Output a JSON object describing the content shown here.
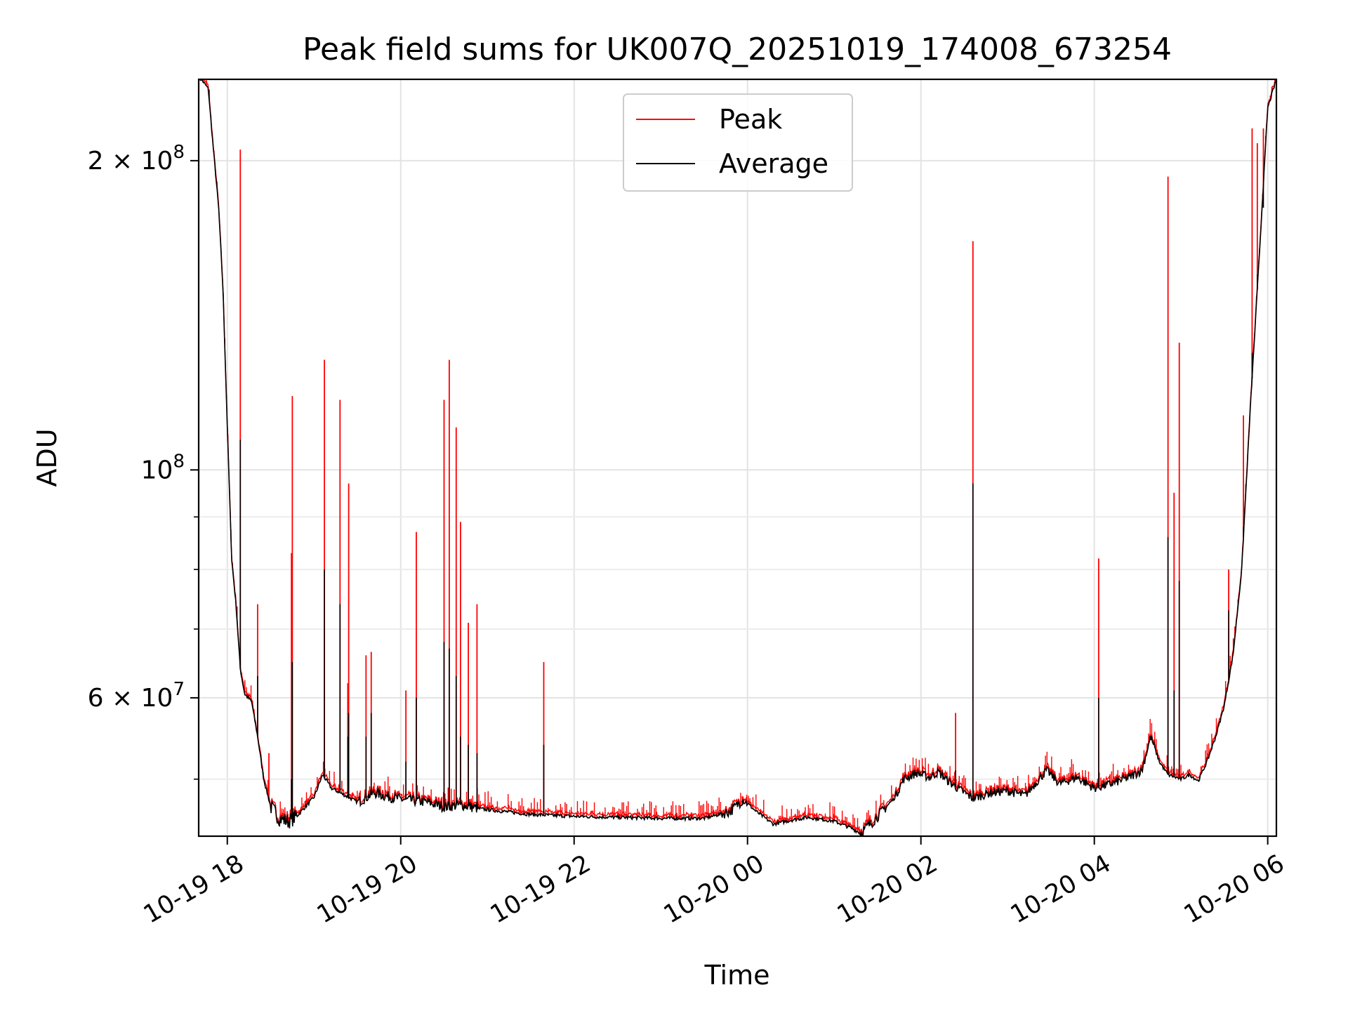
{
  "chart_data": {
    "type": "line",
    "title": "Peak field sums for UK007Q_20251019_174008_673254",
    "xlabel": "Time",
    "ylabel": "ADU",
    "yscale": "log",
    "ylim": [
      44000000,
      240000000
    ],
    "xlim_hours": [
      17.67,
      30.1
    ],
    "grid": true,
    "legend_position": "upper-center",
    "x_ticks": [
      {
        "hours": 18,
        "label": "10-19 18"
      },
      {
        "hours": 20,
        "label": "10-19 20"
      },
      {
        "hours": 22,
        "label": "10-19 22"
      },
      {
        "hours": 24,
        "label": "10-20 00"
      },
      {
        "hours": 26,
        "label": "10-20 02"
      },
      {
        "hours": 28,
        "label": "10-20 04"
      },
      {
        "hours": 30,
        "label": "10-20 06"
      }
    ],
    "y_ticks": [
      {
        "value": 200000000,
        "mant": "2",
        "exp": "8"
      },
      {
        "value": 100000000,
        "mant": "",
        "exp": "8"
      },
      {
        "value": 60000000,
        "mant": "6",
        "exp": "7"
      }
    ],
    "y_minor_ticks": [
      50000000,
      70000000,
      80000000,
      90000000
    ],
    "series": [
      {
        "name": "Peak",
        "color": "#ff0000"
      },
      {
        "name": "Average",
        "color": "#000000"
      }
    ],
    "average_curve": [
      [
        17.7,
        240000000
      ],
      [
        17.78,
        235000000
      ],
      [
        17.84,
        205000000
      ],
      [
        17.9,
        180000000
      ],
      [
        17.95,
        150000000
      ],
      [
        18.0,
        110000000
      ],
      [
        18.05,
        82000000
      ],
      [
        18.1,
        74000000
      ],
      [
        18.15,
        64000000
      ],
      [
        18.2,
        60500000
      ],
      [
        18.28,
        59500000
      ],
      [
        18.35,
        55000000
      ],
      [
        18.42,
        50000000
      ],
      [
        18.5,
        47000000
      ],
      [
        18.6,
        45800000
      ],
      [
        18.7,
        45500000
      ],
      [
        18.8,
        46000000
      ],
      [
        18.9,
        47000000
      ],
      [
        19.0,
        48000000
      ],
      [
        19.1,
        50500000
      ],
      [
        19.2,
        49000000
      ],
      [
        19.3,
        48500000
      ],
      [
        19.4,
        48000000
      ],
      [
        19.5,
        47500000
      ],
      [
        19.6,
        48000000
      ],
      [
        19.7,
        48500000
      ],
      [
        19.8,
        48200000
      ],
      [
        20.0,
        47800000
      ],
      [
        20.3,
        47500000
      ],
      [
        20.5,
        47000000
      ],
      [
        20.7,
        47200000
      ],
      [
        20.9,
        46800000
      ],
      [
        21.2,
        46500000
      ],
      [
        21.5,
        46200000
      ],
      [
        22.0,
        46000000
      ],
      [
        22.5,
        45900000
      ],
      [
        23.0,
        45800000
      ],
      [
        23.5,
        45800000
      ],
      [
        23.8,
        46500000
      ],
      [
        23.95,
        47800000
      ],
      [
        24.1,
        46500000
      ],
      [
        24.3,
        45200000
      ],
      [
        24.5,
        45600000
      ],
      [
        24.7,
        45900000
      ],
      [
        25.0,
        45500000
      ],
      [
        25.2,
        44800000
      ],
      [
        25.3,
        44300000
      ],
      [
        25.45,
        45500000
      ],
      [
        25.6,
        47000000
      ],
      [
        25.7,
        48000000
      ],
      [
        25.8,
        50000000
      ],
      [
        25.95,
        50700000
      ],
      [
        26.1,
        50200000
      ],
      [
        26.2,
        50800000
      ],
      [
        26.35,
        49500000
      ],
      [
        26.5,
        48500000
      ],
      [
        26.6,
        47900000
      ],
      [
        26.8,
        48500000
      ],
      [
        27.0,
        48700000
      ],
      [
        27.2,
        48200000
      ],
      [
        27.45,
        51000000
      ],
      [
        27.6,
        49500000
      ],
      [
        27.8,
        50200000
      ],
      [
        28.0,
        49000000
      ],
      [
        28.2,
        49500000
      ],
      [
        28.4,
        50200000
      ],
      [
        28.55,
        51000000
      ],
      [
        28.65,
        55000000
      ],
      [
        28.75,
        52000000
      ],
      [
        28.85,
        50500000
      ],
      [
        29.0,
        50000000
      ],
      [
        29.1,
        50500000
      ],
      [
        29.2,
        49800000
      ],
      [
        29.3,
        52000000
      ],
      [
        29.4,
        55000000
      ],
      [
        29.5,
        59000000
      ],
      [
        29.6,
        66000000
      ],
      [
        29.7,
        80000000
      ],
      [
        29.8,
        115000000
      ],
      [
        29.9,
        160000000
      ],
      [
        30.0,
        225000000
      ],
      [
        30.1,
        240000000
      ]
    ],
    "noise_bands": [
      {
        "from": 18.5,
        "to": 18.8,
        "amp": 0.018
      },
      {
        "from": 19.5,
        "to": 20.9,
        "amp": 0.012
      },
      {
        "from": 23.7,
        "to": 24.0,
        "amp": 0.012
      },
      {
        "from": 25.3,
        "to": 25.6,
        "amp": 0.012
      },
      {
        "from": 25.7,
        "to": 28.7,
        "amp": 0.01
      }
    ],
    "peak_spikes": [
      {
        "t": 18.15,
        "peak": 205000000,
        "avg": 107000000
      },
      {
        "t": 18.35,
        "peak": 74000000,
        "avg": 63000000
      },
      {
        "t": 18.48,
        "peak": 53000000,
        "avg": 48000000
      },
      {
        "t": 18.75,
        "peak": 118000000,
        "avg": 65000000
      },
      {
        "t": 18.74,
        "peak": 83000000,
        "avg": 50000000
      },
      {
        "t": 19.12,
        "peak": 128000000,
        "avg": 80000000
      },
      {
        "t": 19.3,
        "peak": 117000000,
        "avg": 74000000
      },
      {
        "t": 19.4,
        "peak": 97000000,
        "avg": 58000000
      },
      {
        "t": 19.39,
        "peak": 62000000,
        "avg": 55000000
      },
      {
        "t": 19.6,
        "peak": 66000000,
        "avg": 55000000
      },
      {
        "t": 19.66,
        "peak": 66500000,
        "avg": 58000000
      },
      {
        "t": 20.06,
        "peak": 61000000,
        "avg": 52000000
      },
      {
        "t": 20.18,
        "peak": 87000000,
        "avg": 60000000
      },
      {
        "t": 20.5,
        "peak": 117000000,
        "avg": 68000000
      },
      {
        "t": 20.56,
        "peak": 128000000,
        "avg": 67000000
      },
      {
        "t": 20.64,
        "peak": 110000000,
        "avg": 63000000
      },
      {
        "t": 20.69,
        "peak": 89000000,
        "avg": 55000000
      },
      {
        "t": 20.78,
        "peak": 71000000,
        "avg": 54000000
      },
      {
        "t": 20.88,
        "peak": 74000000,
        "avg": 53000000
      },
      {
        "t": 21.65,
        "peak": 65000000,
        "avg": 54000000
      },
      {
        "t": 26.4,
        "peak": 58000000,
        "avg": 51000000
      },
      {
        "t": 26.6,
        "peak": 167000000,
        "avg": 97000000
      },
      {
        "t": 28.05,
        "peak": 82000000,
        "avg": 60000000
      },
      {
        "t": 28.85,
        "peak": 193000000,
        "avg": 86000000
      },
      {
        "t": 28.92,
        "peak": 95000000,
        "avg": 61000000
      },
      {
        "t": 28.98,
        "peak": 133000000,
        "avg": 78000000
      },
      {
        "t": 29.55,
        "peak": 80000000,
        "avg": 73000000
      },
      {
        "t": 29.72,
        "peak": 113000000,
        "avg": 88000000
      },
      {
        "t": 29.82,
        "peak": 215000000,
        "avg": 130000000
      },
      {
        "t": 29.88,
        "peak": 208000000,
        "avg": 155000000
      },
      {
        "t": 29.95,
        "peak": 215000000,
        "avg": 180000000
      }
    ],
    "small_peak_density": 0.55
  }
}
